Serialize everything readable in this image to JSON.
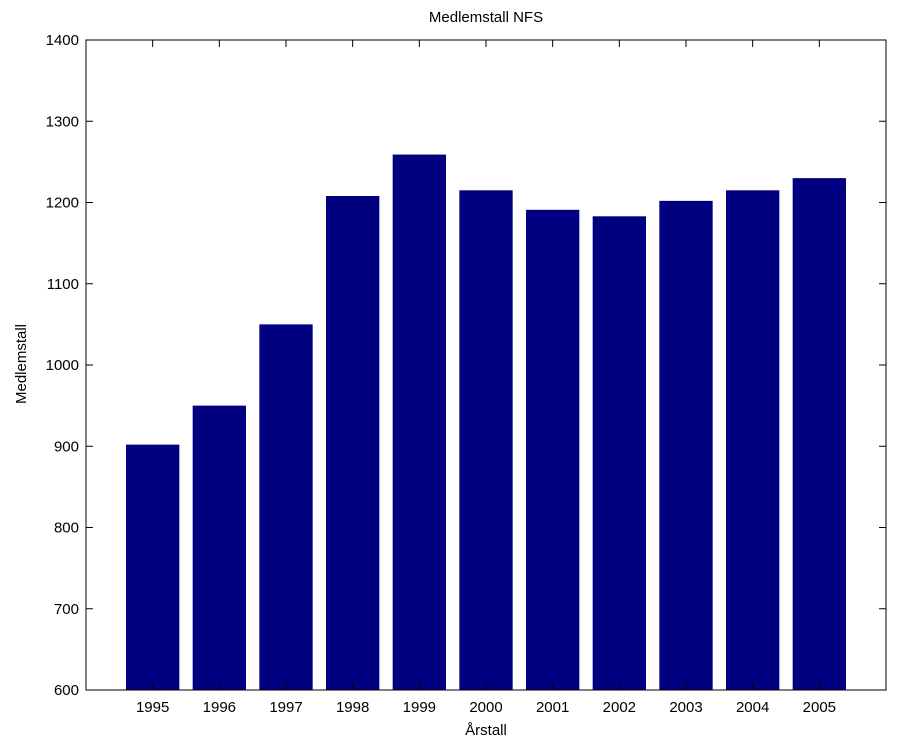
{
  "chart_data": {
    "type": "bar",
    "title": "Medlemstall NFS",
    "xlabel": "Årstall",
    "ylabel": "Medlemstall",
    "categories": [
      "1995",
      "1996",
      "1997",
      "1998",
      "1999",
      "2000",
      "2001",
      "2002",
      "2003",
      "2004",
      "2005"
    ],
    "values": [
      902,
      950,
      1050,
      1208,
      1259,
      1215,
      1191,
      1183,
      1202,
      1215,
      1230
    ],
    "ylim": [
      600,
      1400
    ],
    "yticks": [
      600,
      700,
      800,
      900,
      1000,
      1100,
      1200,
      1300,
      1400
    ],
    "ytick_labels": [
      "600",
      "700",
      "800",
      "900",
      "1000",
      "1100",
      "1200",
      "1300",
      "1400"
    ],
    "grid": false,
    "legend": "none",
    "bar_color": "#000080",
    "axis_color": "#000000",
    "background_color": "#ffffff"
  }
}
